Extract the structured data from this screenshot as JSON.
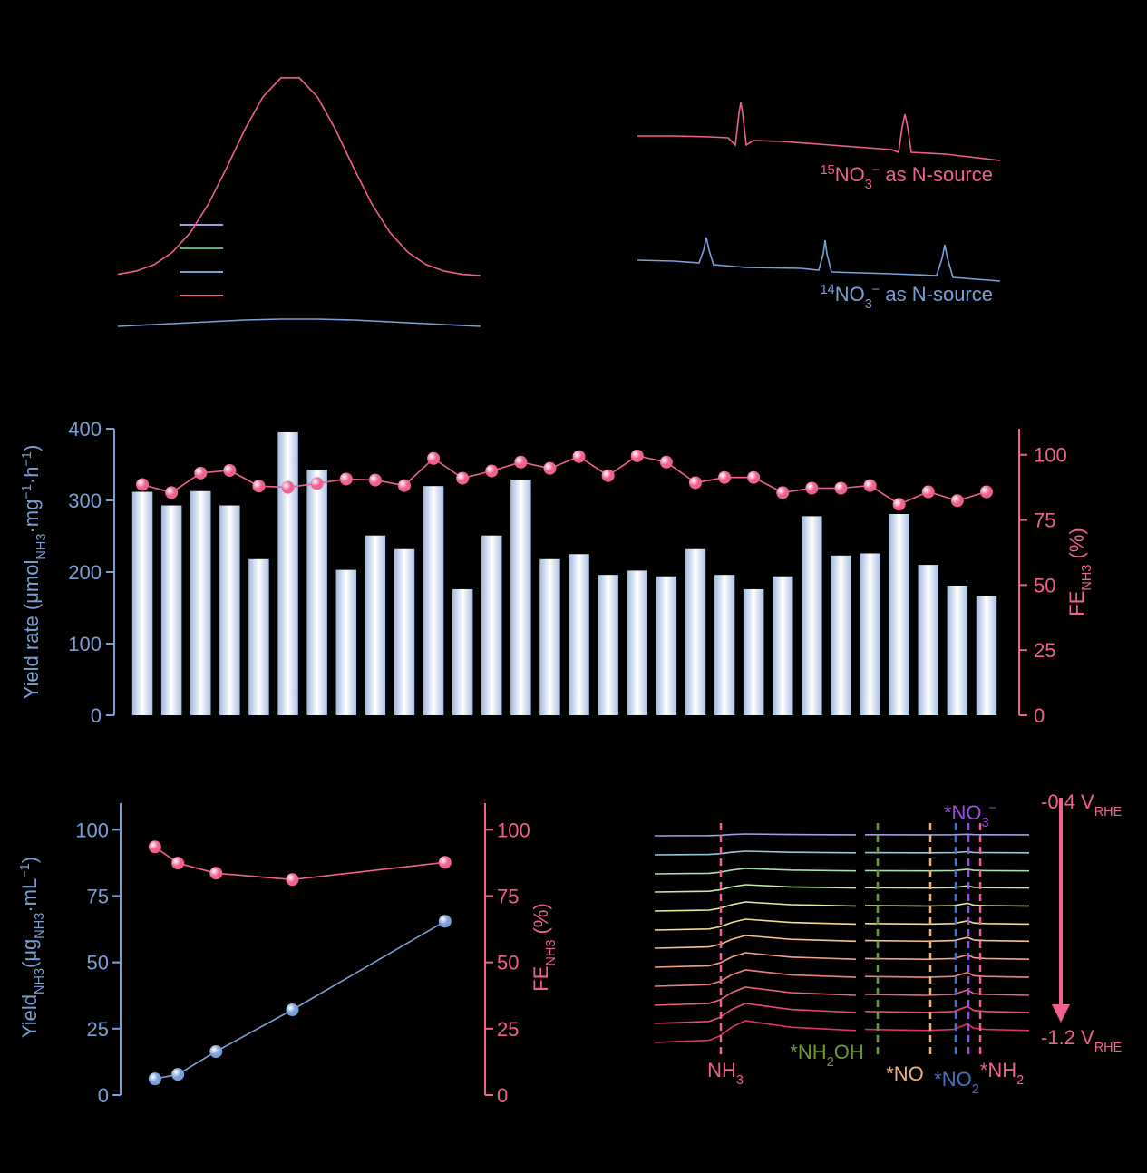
{
  "chart_data": [
    {
      "type": "line",
      "xlim": [
        0,
        20
      ],
      "ylim": [
        0,
        310
      ],
      "x": [
        0,
        1,
        2,
        3,
        4,
        5,
        6,
        7,
        8,
        9,
        10,
        11,
        12,
        13,
        14,
        15,
        16,
        17,
        18,
        19,
        20
      ],
      "series": [
        {
          "color": "#f06090",
          "values": [
            77.4,
            80.9,
            88.1,
            101.6,
            123.6,
            155.1,
            194.9,
            237.1,
            273.2,
            294.2,
            294.2,
            273.2,
            237.1,
            194.9,
            155.1,
            123.6,
            101.6,
            88.1,
            80.9,
            77.4,
            75.9
          ]
        },
        {
          "color": "#7aa0d8",
          "values": [
            20,
            21,
            22,
            23,
            24,
            25,
            26,
            27,
            27.5,
            28,
            28,
            28,
            27.5,
            27,
            26,
            25,
            24,
            23,
            22,
            21,
            20
          ]
        }
      ]
    },
    {
      "type": "line",
      "xlim": [
        0,
        400
      ],
      "ylim": [
        0,
        260
      ],
      "series": [
        {
          "color": "#f06090",
          "x": [
            0,
            40,
            80,
            100,
            108,
            112,
            114,
            116,
            120,
            128,
            160,
            200,
            240,
            280,
            288,
            292,
            295,
            298,
            302,
            340,
            400
          ],
          "values": [
            190,
            190,
            189,
            188,
            180,
            215,
            227,
            215,
            180,
            185,
            184,
            181,
            178,
            175,
            172,
            200,
            214,
            200,
            172,
            170,
            163
          ]
        },
        {
          "color": "#7aa0d8",
          "x": [
            0,
            40,
            68,
            73,
            76,
            79,
            84,
            120,
            180,
            200,
            205,
            207,
            209,
            214,
            280,
            330,
            336,
            339,
            342,
            348,
            400
          ],
          "values": [
            53,
            52,
            50,
            64,
            78,
            64,
            48,
            45,
            44,
            42,
            60,
            75,
            60,
            40,
            38,
            36,
            55,
            70,
            55,
            34,
            30
          ]
        }
      ],
      "annotations": [
        {
          "color": "#f06090",
          "text": [
            {
              "text": "15",
              "style": "sup"
            },
            {
              "text": "NO"
            },
            {
              "text": "3",
              "style": "sub"
            },
            {
              "text": "−",
              "style": "sup"
            },
            {
              "text": " as N-source"
            }
          ]
        },
        {
          "color": "#7aa0d8",
          "text": [
            {
              "text": "14",
              "style": "sup"
            },
            {
              "text": "NO"
            },
            {
              "text": "3",
              "style": "sub"
            },
            {
              "text": "−",
              "style": "sup"
            },
            {
              "text": " as N-source"
            }
          ]
        }
      ]
    },
    {
      "type": "bar",
      "categories": [
        null,
        null,
        null,
        null,
        null,
        null,
        null,
        null,
        null,
        null,
        null,
        null,
        null,
        null,
        null,
        null,
        null,
        null,
        null,
        null,
        null,
        null,
        null,
        null,
        null,
        null,
        null,
        null,
        null,
        null
      ],
      "ylim": [
        0,
        400
      ],
      "yticks": [
        0,
        100,
        200,
        300,
        400
      ],
      "y2lim": [
        0,
        110
      ],
      "y2ticks": [
        0,
        25,
        50,
        75,
        100
      ],
      "ycolor": "#7aa0d8",
      "y2color": "#f06090",
      "ylabel": [
        {
          "text": "Yield rate (μmol"
        },
        {
          "text": "NH3",
          "style": "sub"
        },
        {
          "text": "·mg"
        },
        {
          "text": "−1",
          "style": "sup"
        },
        {
          "text": "·h"
        },
        {
          "text": "−1",
          "style": "sup"
        },
        {
          "text": ")"
        }
      ],
      "y2label": [
        {
          "text": "FE"
        },
        {
          "text": "NH3",
          "style": "sub"
        },
        {
          "text": " (%)"
        }
      ],
      "series": [
        {
          "type": "bar",
          "values": [
            312,
            293,
            313,
            293,
            218,
            395,
            343,
            203,
            251,
            232,
            320,
            176,
            251,
            329,
            218,
            225,
            196,
            202,
            194,
            232,
            196,
            176,
            194,
            278,
            223,
            226,
            281,
            210,
            181,
            167
          ]
        },
        {
          "type": "line",
          "axis": "y2",
          "color": "#f06090",
          "marker": "circle",
          "values": [
            88.6,
            85.5,
            93,
            94,
            88,
            87.5,
            89,
            90.7,
            90.3,
            88.2,
            98.6,
            91,
            93.8,
            97.2,
            94.8,
            99.3,
            92,
            99.6,
            97.2,
            89.3,
            91.3,
            91.3,
            85.5,
            87.2,
            87.2,
            88.2,
            81,
            85.8,
            82.4,
            85.8
          ]
        }
      ]
    },
    {
      "type": "line",
      "x": [
        0.4,
        1,
        2,
        4,
        8
      ],
      "xlim": [
        -0.5,
        9.05
      ],
      "ylim": [
        0,
        110
      ],
      "yticks": [
        0,
        25,
        50,
        75,
        100
      ],
      "y2lim": [
        0,
        110
      ],
      "y2ticks": [
        0,
        25,
        50,
        75,
        100
      ],
      "ycolor": "#7aa0d8",
      "y2color": "#f06090",
      "ylabel": [
        {
          "text": "Yield"
        },
        {
          "text": "NH3",
          "style": "sub"
        },
        {
          "text": "(μg"
        },
        {
          "text": "NH3",
          "style": "sub"
        },
        {
          "text": "·mL"
        },
        {
          "text": "−1",
          "style": "sup"
        },
        {
          "text": ")"
        }
      ],
      "y2label": [
        {
          "text": "FE"
        },
        {
          "text": "NH3",
          "style": "sub"
        },
        {
          "text": " (%)"
        }
      ],
      "series": [
        {
          "color": "#7aa0d8",
          "marker": "circle",
          "values": [
            6.1,
            7.8,
            16.4,
            32.1,
            65.5
          ]
        },
        {
          "color": "#f06090",
          "marker": "circle",
          "axis": "y2",
          "values": [
            93.5,
            87.4,
            83.6,
            81.2,
            87.7
          ]
        }
      ]
    },
    {
      "type": "line",
      "xlim": [
        0,
        413
      ],
      "ylim": [
        0,
        250
      ],
      "x": [
        0,
        60,
        72,
        85,
        100,
        150,
        222,
        228,
        232,
        300,
        330,
        345,
        352,
        365,
        413
      ],
      "series": [
        {
          "color": "#e0306a",
          "values": [
            10,
            12.4,
            17.2,
            26.8,
            34,
            26.8,
            23.2,
            null,
            24.4,
            23.2,
            24.4,
            30.4,
            25.6,
            24.4,
            23.2
          ]
        },
        {
          "color": "#e84a70",
          "values": [
            31,
            33.2,
            37.6,
            46.4,
            53,
            46.4,
            43.1,
            null,
            44.2,
            43.1,
            44.2,
            49.7,
            45.3,
            44.2,
            43.1
          ]
        },
        {
          "color": "#ec6478",
          "values": [
            51,
            53,
            57,
            65,
            71,
            65,
            62,
            null,
            63,
            62,
            63,
            68,
            64,
            63,
            62
          ]
        },
        {
          "color": "#f08080",
          "values": [
            72,
            73.8,
            77.4,
            84.6,
            90,
            84.6,
            81.9,
            null,
            82.8,
            81.9,
            82.8,
            87.3,
            83.7,
            82.8,
            81.9
          ]
        },
        {
          "color": "#f4a088",
          "values": [
            93,
            94.6,
            97.8,
            104.2,
            109,
            104.2,
            101.8,
            null,
            102.6,
            101.8,
            102.6,
            106.6,
            103.4,
            102.6,
            101.8
          ]
        },
        {
          "color": "#f6c08c",
          "values": [
            114,
            115.4,
            118.2,
            123.8,
            128,
            123.8,
            121.7,
            null,
            122.4,
            121.7,
            122.4,
            125.9,
            123.1,
            122.4,
            121.7
          ]
        },
        {
          "color": "#f4dc90",
          "values": [
            134,
            135.2,
            137.6,
            142.4,
            146,
            142.4,
            140.6,
            null,
            141.2,
            140.6,
            141.2,
            144.2,
            141.8,
            141.2,
            140.6
          ]
        },
        {
          "color": "#e8ee98",
          "values": [
            155,
            156,
            158,
            162,
            165,
            162,
            160.5,
            null,
            161,
            160.5,
            161,
            163.5,
            161.5,
            161,
            160.5
          ]
        },
        {
          "color": "#c8eaa0",
          "values": [
            176,
            176.8,
            178.4,
            181.6,
            184,
            181.6,
            180.4,
            null,
            180.8,
            180.4,
            180.8,
            182.8,
            181.2,
            180.8,
            180.4
          ]
        },
        {
          "color": "#a8e0b0",
          "values": [
            196,
            196.6,
            197.8,
            200.2,
            202,
            200.2,
            199.3,
            null,
            199.6,
            199.3,
            199.6,
            201.1,
            199.9,
            199.6,
            199.3
          ]
        },
        {
          "color": "#98c8d8",
          "values": [
            217,
            217.4,
            218.2,
            219.8,
            221,
            219.8,
            219.2,
            null,
            219.4,
            219.2,
            219.4,
            220.4,
            219.6,
            219.4,
            219.2
          ]
        },
        {
          "color": "#a0a0e0",
          "values": [
            238,
            238.2,
            238.6,
            239.4,
            240,
            239.4,
            239.1,
            null,
            239.2,
            239.1,
            239.2,
            239.7,
            239.3,
            239.2,
            239.1
          ]
        }
      ],
      "vlines": [
        {
          "x": 73,
          "color": "#f06090",
          "label": [
            {
              "text": "NH"
            },
            {
              "text": "3",
              "style": "sub"
            }
          ]
        },
        {
          "x": 246,
          "color": "#6a9a3a",
          "label": [
            {
              "text": "*NH"
            },
            {
              "text": "2",
              "style": "sub"
            },
            {
              "text": "OH"
            }
          ]
        },
        {
          "x": 304,
          "color": "#f4b070",
          "label": [
            {
              "text": "*NO"
            }
          ]
        },
        {
          "x": 332,
          "color": "#4a70c8",
          "label": [
            {
              "text": "*NO"
            },
            {
              "text": "2",
              "style": "sub"
            }
          ]
        },
        {
          "x": 346,
          "color": "#9a50e0",
          "label": [
            {
              "text": "*NO"
            },
            {
              "text": "3",
              "style": "sub"
            },
            {
              "text": "−",
              "style": "sup"
            }
          ]
        },
        {
          "x": 359,
          "color": "#f06090",
          "label": [
            {
              "text": "*NH"
            },
            {
              "text": "2",
              "style": "sub"
            }
          ]
        }
      ],
      "annotations": [
        {
          "color": "#f06090",
          "text": [
            {
              "text": "-0.4 V"
            },
            {
              "text": "RHE",
              "style": "sub"
            }
          ]
        },
        {
          "color": "#f06090",
          "text": [
            {
              "text": "-1.2 V"
            },
            {
              "text": "RHE",
              "style": "sub"
            }
          ]
        }
      ]
    }
  ]
}
